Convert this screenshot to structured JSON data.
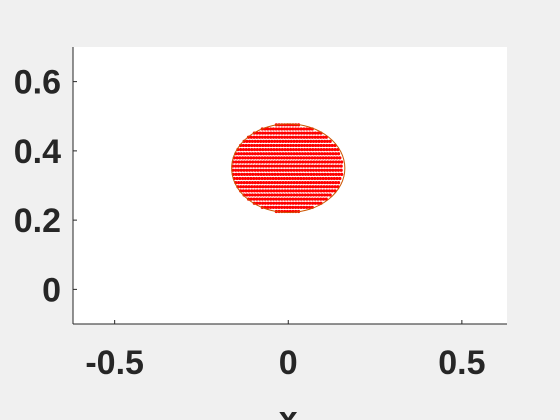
{
  "chart_data": {
    "type": "scatter",
    "title": "",
    "xlabel": "x",
    "ylabel": "",
    "xlim": [
      -0.62,
      0.63
    ],
    "ylim": [
      -0.1,
      0.7
    ],
    "xticks": [
      -0.5,
      0,
      0.5
    ],
    "xtick_labels": [
      "-0.5",
      "0",
      "0.5"
    ],
    "yticks": [
      0,
      0.2,
      0.4,
      0.6
    ],
    "ytick_labels": [
      "0",
      "0.2",
      "0.4",
      "0.6"
    ],
    "grid": false,
    "box": false,
    "colors": {
      "marker": "#ff0000",
      "outline": "#cc5500",
      "axes": "#262626",
      "plot_bg": "#ffffff",
      "figure_bg": "#f0f0f0"
    },
    "circle": {
      "center": [
        0.0,
        0.35
      ],
      "rx": 0.163,
      "ry": 0.128
    },
    "series": [
      {
        "marker": "dot",
        "description_rows": {
          "y_start": 0.225,
          "y_end": 0.475,
          "row_count": 22,
          "x_step": 0.008
        }
      }
    ]
  }
}
